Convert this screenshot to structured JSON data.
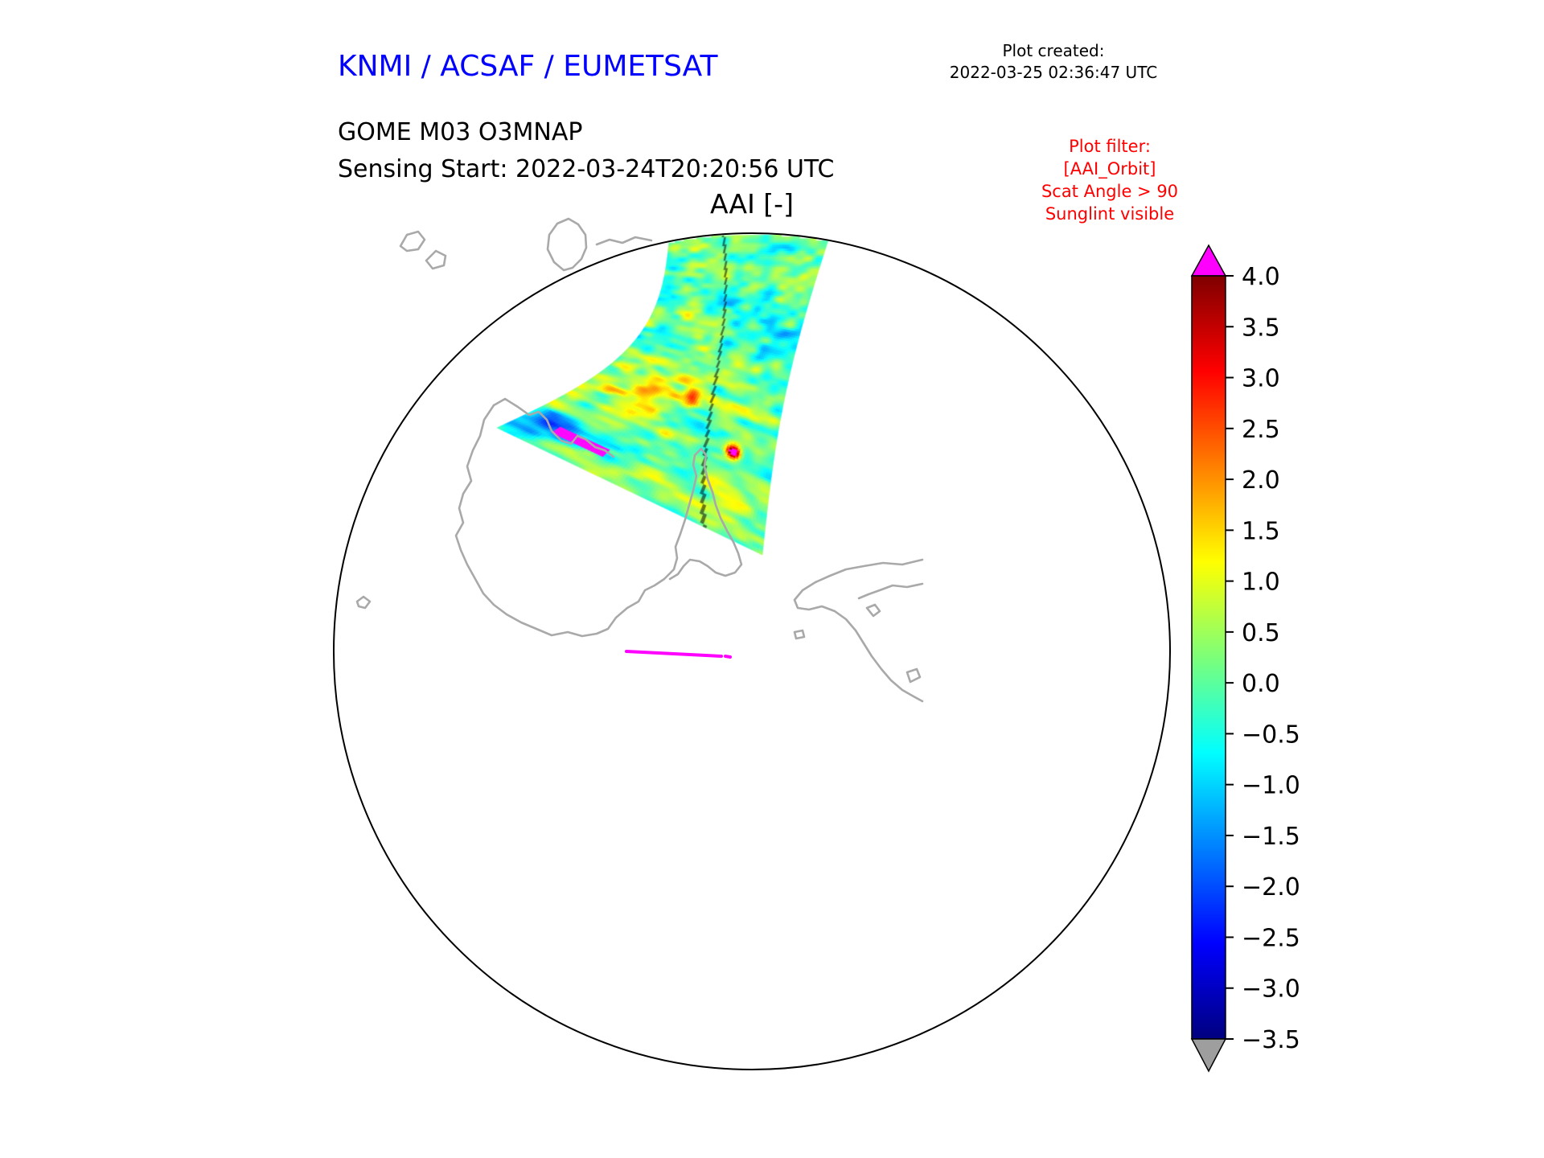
{
  "header": {
    "agency_title": "KNMI / ACSAF / EUMETSAT",
    "plot_created_label": "Plot created:",
    "plot_created_time": "2022-03-25 02:36:47 UTC",
    "product_name": "GOME M03 O3MNAP",
    "sensing_start": "Sensing Start: 2022-03-24T20:20:56 UTC",
    "plot_title": "AAI [-]",
    "filter_lines": [
      "Plot filter:",
      "[AAI_Orbit]",
      "Scat Angle > 90",
      "Sunglint visible"
    ]
  },
  "colors": {
    "title_blue": "#0000ff",
    "filter_red": "#ff0000",
    "coastline_gray": "#a9a9a9",
    "sunglint_track_magenta": "#ff00ff",
    "map_outline_black": "#000000"
  },
  "chart_data": {
    "type": "heatmap",
    "title": "AAI [-]",
    "projection": "south polar stereographic",
    "colormap": "jet",
    "value_range": [
      -3.5,
      4.0
    ],
    "colorbar": {
      "tick_labels": [
        "4.0",
        "3.5",
        "3.0",
        "2.5",
        "2.0",
        "1.5",
        "1.0",
        "0.5",
        "0.0",
        "−0.5",
        "−1.0",
        "−1.5",
        "−2.0",
        "−2.5",
        "−3.0",
        "−3.5"
      ],
      "over_arrow_color": "#ff00ff",
      "under_arrow_color": "#9e9e9e",
      "gradient_top_to_bottom": [
        {
          "offset": 0,
          "color": "#7f0000"
        },
        {
          "offset": 0.125,
          "color": "#ff0000"
        },
        {
          "offset": 0.375,
          "color": "#ffff00"
        },
        {
          "offset": 0.5,
          "color": "#7cff79"
        },
        {
          "offset": 0.625,
          "color": "#00ffff"
        },
        {
          "offset": 0.875,
          "color": "#0000ff"
        },
        {
          "offset": 1,
          "color": "#00007f"
        }
      ]
    },
    "swath": {
      "description": "single orbit AAI swath reaching the Antarctic coast",
      "typical_value_range": [
        -1.5,
        1.5
      ]
    }
  }
}
